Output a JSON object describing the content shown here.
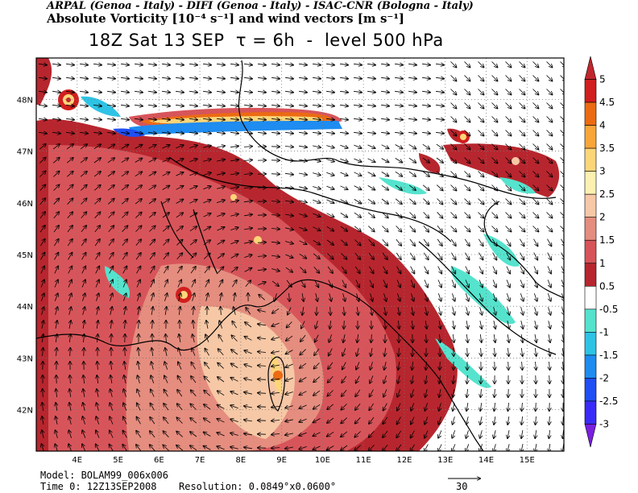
{
  "header": {
    "line1": "ARPAL (Genoa - Italy)  -  DIFI (Genoa - Italy)  -  ISAC-CNR (Bologna - Italy)",
    "line2": "Absolute Vorticity [10⁻⁴ s⁻¹] and wind vectors [m s⁻¹]",
    "line3": "18Z Sat 13 SEP  τ = 6h  -  level 500 hPa"
  },
  "map": {
    "lon_labels": [
      "4E",
      "5E",
      "6E",
      "7E",
      "8E",
      "9E",
      "10E",
      "11E",
      "12E",
      "13E",
      "14E",
      "15E"
    ],
    "lat_labels": [
      "42N",
      "43N",
      "44N",
      "45N",
      "46N",
      "47N",
      "48N"
    ],
    "lon_range": [
      3.0,
      15.9
    ],
    "lat_range": [
      41.2,
      48.8
    ]
  },
  "colorbar": {
    "labels": [
      "5",
      "4.5",
      "4",
      "3.5",
      "3",
      "2.5",
      "2",
      "1.5",
      "1",
      "0.5",
      "-0.5",
      "-1",
      "-1.5",
      "-2",
      "-2.5",
      "-3"
    ],
    "colors": [
      "#c0272d",
      "#d11e1e",
      "#ec6b12",
      "#f8a53a",
      "#fdd579",
      "#fcf1b0",
      "#f6c8a6",
      "#e58d7f",
      "#d7555a",
      "#b7262e",
      "#ffffff",
      "#55e3cd",
      "#2ec3e5",
      "#1e8cf0",
      "#1f4ff5",
      "#3a2cf8",
      "#7a20e0"
    ]
  },
  "footer": {
    "model": "Model: BOLAM99_006x006",
    "time0": "Time 0: 12Z13SEP2008",
    "resolution": "Resolution: 0.0849°x0.0600°",
    "ref_vector": "30"
  }
}
